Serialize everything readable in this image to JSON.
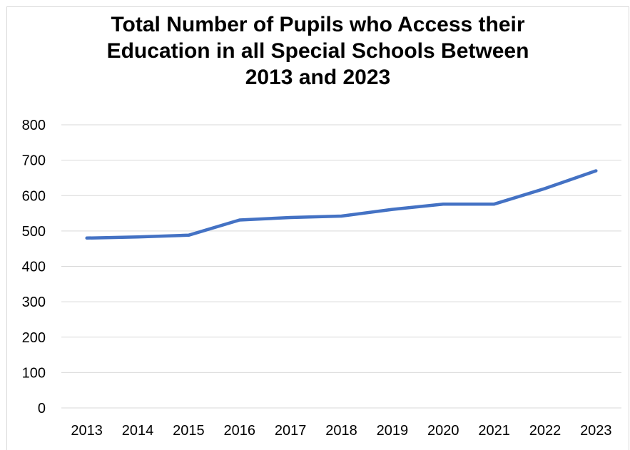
{
  "chart_data": {
    "type": "line",
    "title_lines": [
      "Total Number of Pupils who Access their",
      "Education in all Special Schools Between",
      "2013 and 2023"
    ],
    "title": "Total Number of Pupils who Access their Education in all Special Schools Between 2013 and 2023",
    "xlabel": "",
    "ylabel": "",
    "categories": [
      "2013",
      "2014",
      "2015",
      "2016",
      "2017",
      "2018",
      "2019",
      "2020",
      "2021",
      "2022",
      "2023"
    ],
    "series": [
      {
        "values": [
          480,
          483,
          488,
          531,
          538,
          542,
          561,
          576,
          576,
          620,
          670
        ],
        "color": "#4472c4"
      }
    ],
    "ylim": [
      0,
      800
    ],
    "yticks": [
      0,
      100,
      200,
      300,
      400,
      500,
      600,
      700,
      800
    ],
    "grid": true,
    "legend": "none"
  }
}
